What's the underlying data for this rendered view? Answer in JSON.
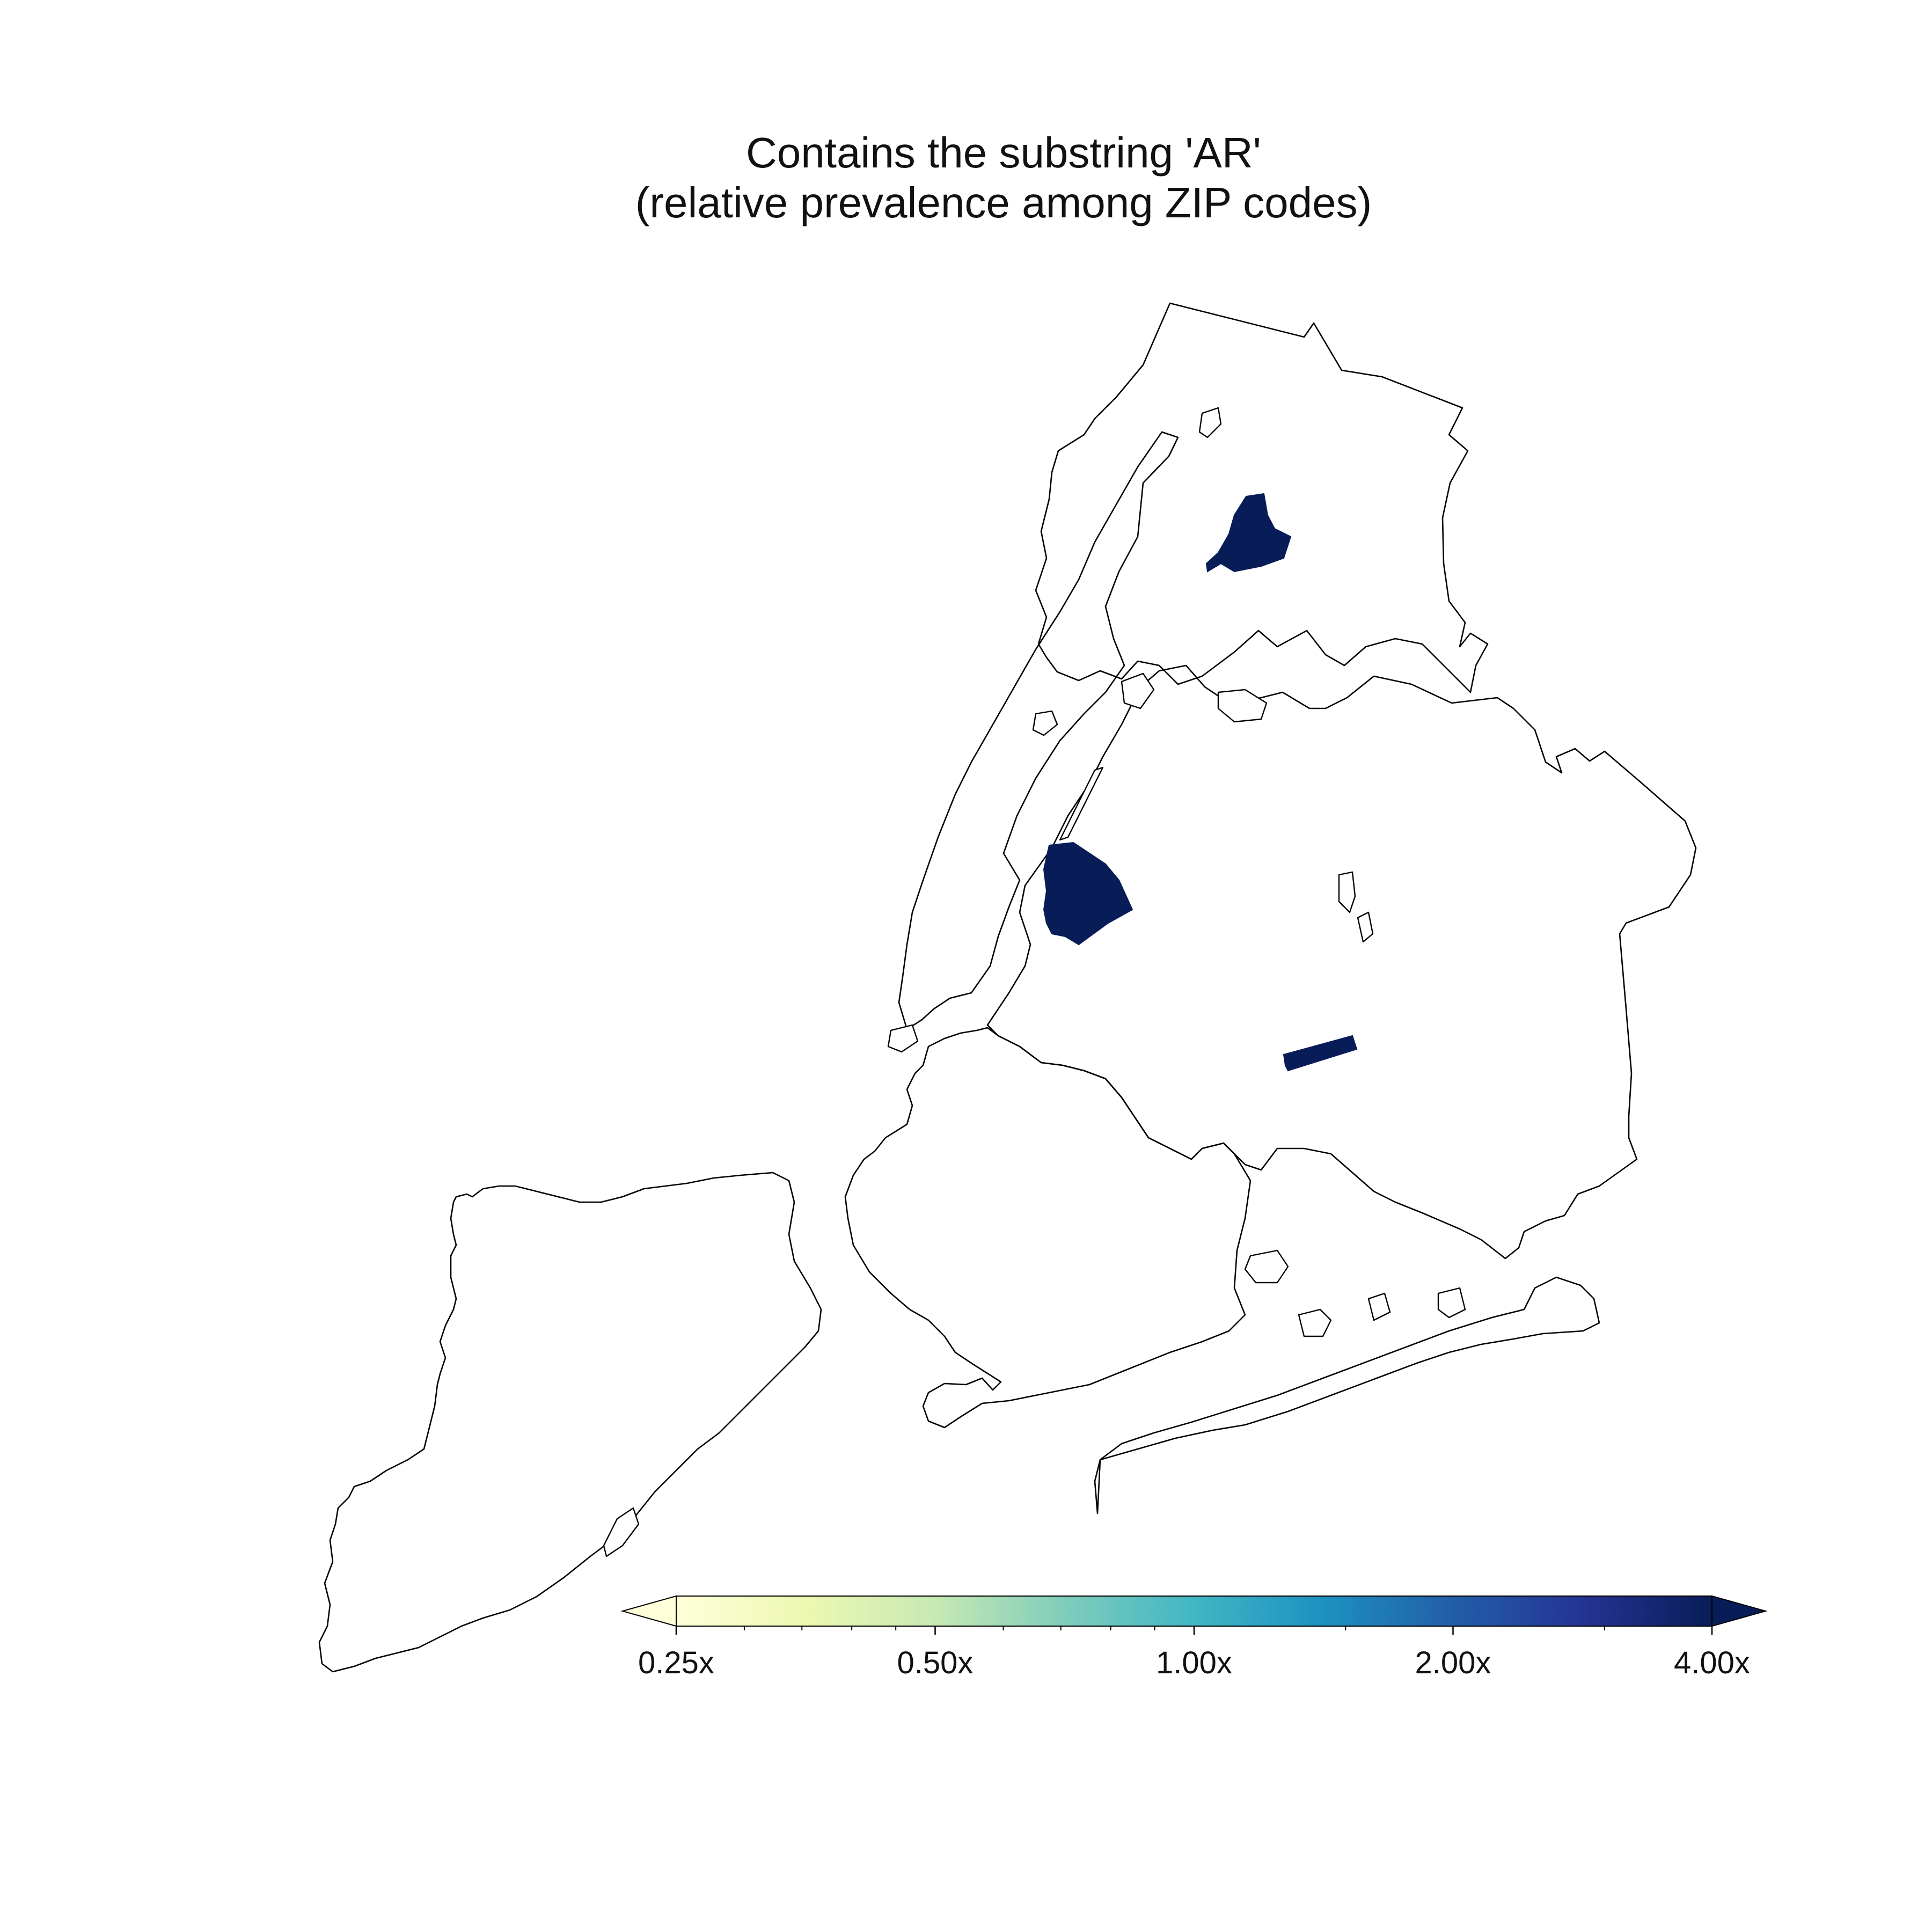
{
  "title": {
    "line1": "Contains the substring 'AR'",
    "line2": "(relative prevalence among ZIP codes)"
  },
  "map": {
    "highlighted_zips": [
      {
        "name": "bronx-zip-area",
        "ratio": 4.0
      },
      {
        "name": "queens-northwest-zip-area",
        "ratio": 4.0
      },
      {
        "name": "queens-central-zip-area",
        "ratio": 4.0
      }
    ]
  },
  "colorbar": {
    "colormap": "YlGnBu",
    "scale": "log2",
    "min": 0.25,
    "max": 4.0,
    "extend": "both",
    "ticks": [
      {
        "value": 0.25,
        "label": "0.25x"
      },
      {
        "value": 0.5,
        "label": "0.50x"
      },
      {
        "value": 1.0,
        "label": "1.00x"
      },
      {
        "value": 2.0,
        "label": "2.00x"
      },
      {
        "value": 4.0,
        "label": "4.00x"
      }
    ],
    "colors": [
      "#ffffd9",
      "#edf8b1",
      "#c7e9b4",
      "#7fcdbb",
      "#41b6c4",
      "#1d91c0",
      "#225ea8",
      "#253494",
      "#081d58"
    ]
  }
}
